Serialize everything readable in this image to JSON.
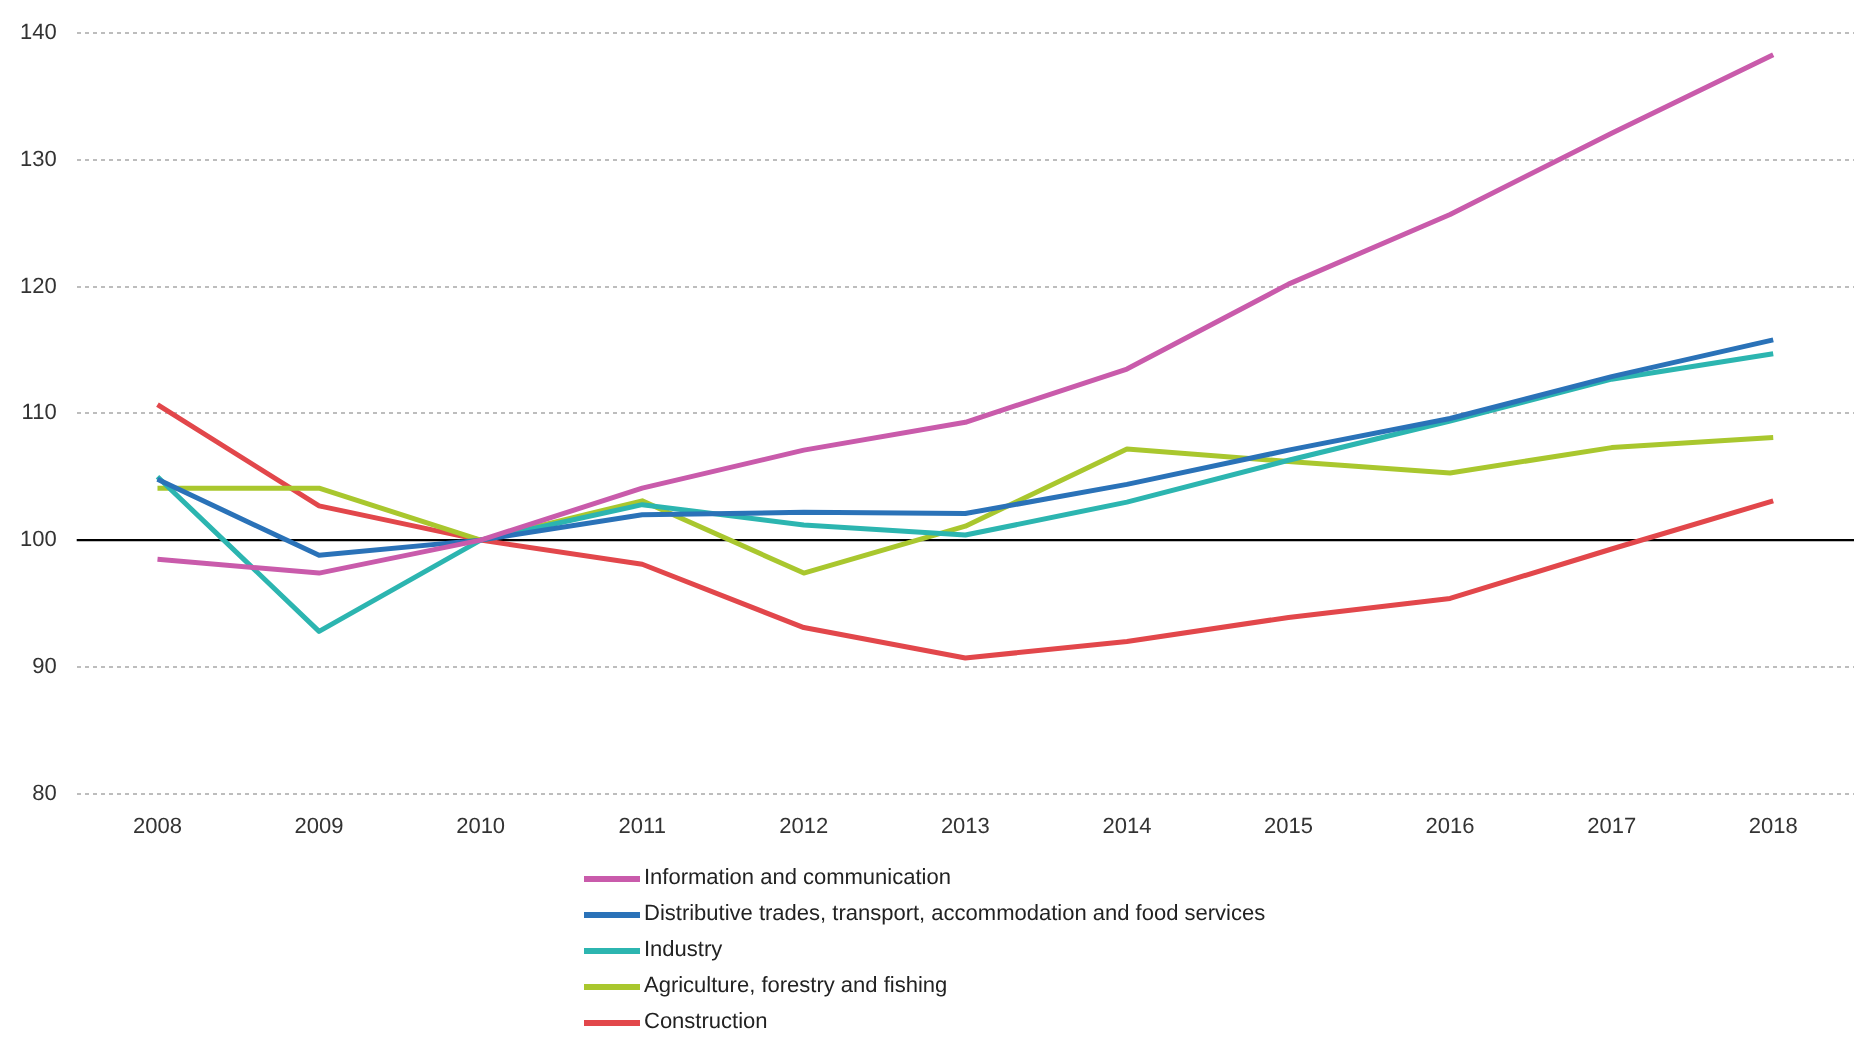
{
  "chart_data": {
    "type": "line",
    "categories": [
      "2008",
      "2009",
      "2010",
      "2011",
      "2012",
      "2013",
      "2014",
      "2015",
      "2016",
      "2017",
      "2018"
    ],
    "series": [
      {
        "name": "Information and communication",
        "color": "#c95bab",
        "values": [
          98.5,
          97.4,
          100,
          104.1,
          107.1,
          109.3,
          113.5,
          120.2,
          125.7,
          132.1,
          138.3
        ]
      },
      {
        "name": "Distributive trades, transport, accommodation and food services",
        "color": "#2a72b8",
        "values": [
          104.8,
          98.8,
          100,
          102,
          102.2,
          102.1,
          104.4,
          107.1,
          109.6,
          112.9,
          115.8
        ]
      },
      {
        "name": "Industry",
        "color": "#2cb5b0",
        "values": [
          105,
          92.8,
          100,
          102.8,
          101.2,
          100.4,
          103,
          106.3,
          109.4,
          112.7,
          114.7
        ]
      },
      {
        "name": "Agriculture, forestry and fishing",
        "color": "#a9c72e",
        "values": [
          104.1,
          104.1,
          100,
          103.1,
          97.4,
          101.1,
          107.2,
          106.2,
          105.3,
          107.3,
          108.1
        ]
      },
      {
        "name": "Construction",
        "color": "#e2474b",
        "values": [
          110.7,
          102.7,
          100,
          98.1,
          93.1,
          90.7,
          92,
          93.9,
          95.4,
          99.3,
          103.1
        ]
      }
    ],
    "ylim": [
      80,
      140
    ],
    "yticks": [
      80,
      90,
      100,
      110,
      120,
      130,
      140
    ],
    "grid": "y",
    "legend": "bottom",
    "marker": "none",
    "line_style": "solid",
    "ref_lines": [
      {
        "axis": "y",
        "value": 100,
        "color": "#000000"
      }
    ]
  }
}
